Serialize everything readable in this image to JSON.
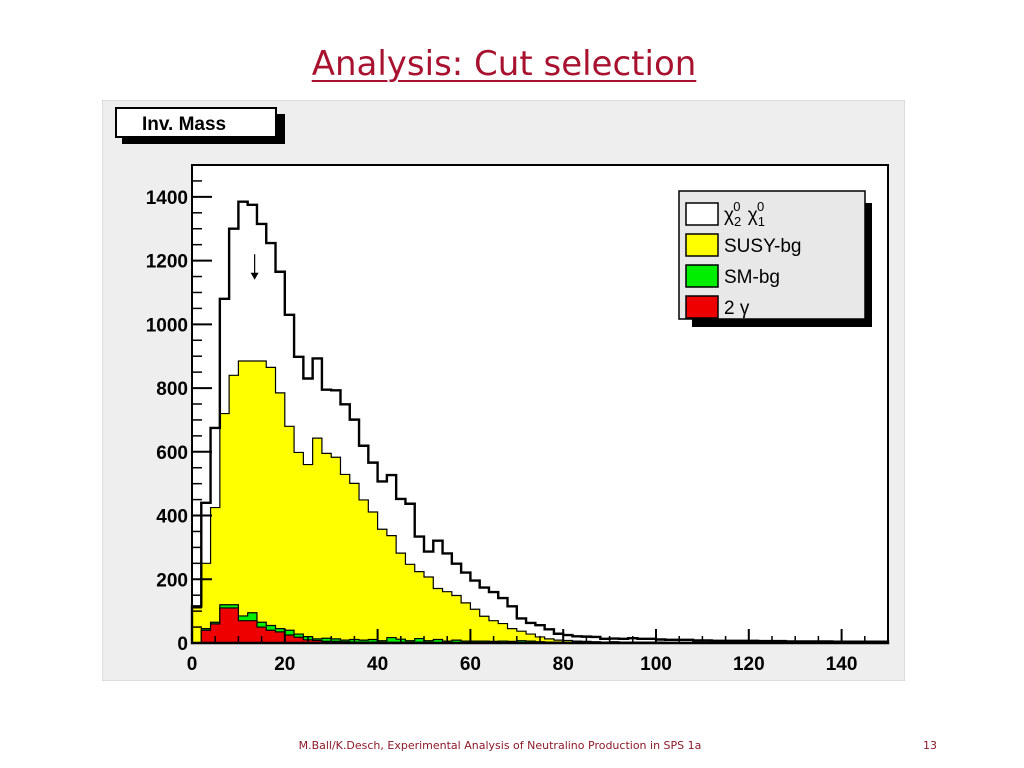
{
  "slide": {
    "title": "Analysis: Cut selection",
    "footer": "M.Ball/K.Desch, Experimental Analysis of Neutralino Production in SPS 1a",
    "page_number": "13"
  },
  "colors": {
    "title": "#a8122f",
    "pad_background": "#eeeeee",
    "frame_background": "#ffffff",
    "signal": "#ffffff",
    "susy_bg": "#ffff00",
    "sm_bg": "#00ee00",
    "two_gamma": "#ee0000",
    "footer": "#8c1a2a"
  },
  "chart_data": {
    "type": "area",
    "stacked": true,
    "title": "Inv. Mass",
    "xlabel": "",
    "ylabel": "",
    "xlim": [
      0,
      150
    ],
    "ylim": [
      0,
      1500
    ],
    "x_ticks": [
      0,
      20,
      40,
      60,
      80,
      100,
      120,
      140
    ],
    "y_ticks": [
      0,
      200,
      400,
      600,
      800,
      1000,
      1200,
      1400
    ],
    "bin_width": 2,
    "grid": false,
    "legend_position": "top-right",
    "legend": [
      {
        "label_main": "χ",
        "sub1": "2",
        "sup1": "0",
        "sub2": "1",
        "sup2": "0",
        "label": "χ₂⁰ χ₁⁰",
        "color": "#ffffff"
      },
      {
        "label": "SUSY-bg",
        "color": "#ffff00"
      },
      {
        "label": "SM-bg",
        "color": "#00ee00"
      },
      {
        "label": "2 γ",
        "color": "#ee0000"
      }
    ],
    "annotation": {
      "type": "arrow",
      "x": 13.5,
      "y_from": 1220,
      "y_to": 1140
    },
    "series": [
      {
        "name": "2 γ",
        "values": [
          0,
          40,
          60,
          110,
          110,
          70,
          70,
          50,
          40,
          35,
          25,
          18,
          10,
          8,
          5,
          5,
          4,
          3,
          3,
          3,
          2,
          2,
          2,
          2,
          2,
          2,
          1,
          1,
          1,
          1,
          1,
          1,
          1,
          1,
          1,
          1,
          1,
          0,
          0,
          0,
          0,
          0,
          0,
          0,
          0,
          0,
          0,
          0,
          0,
          0,
          0,
          0,
          0,
          0,
          0,
          0,
          0,
          0,
          0,
          0,
          0,
          0,
          0,
          0,
          0,
          0,
          0,
          0,
          0,
          0,
          0,
          0,
          0,
          0,
          0
        ]
      },
      {
        "name": "SM-bg",
        "values": [
          0,
          5,
          5,
          10,
          10,
          15,
          25,
          15,
          15,
          10,
          15,
          10,
          10,
          5,
          10,
          8,
          5,
          8,
          6,
          8,
          5,
          15,
          10,
          5,
          12,
          5,
          10,
          5,
          8,
          5,
          5,
          5,
          4,
          5,
          4,
          6,
          5,
          4,
          3,
          3,
          3,
          3,
          3,
          2,
          2,
          3,
          2,
          2,
          2,
          2,
          2,
          1,
          1,
          1,
          1,
          1,
          1,
          1,
          1,
          1,
          1,
          1,
          1,
          1,
          1,
          1,
          1,
          1,
          1,
          1,
          1,
          1,
          1,
          1,
          1
        ]
      },
      {
        "name": "SUSY-bg",
        "values": [
          110,
          205,
          360,
          600,
          720,
          800,
          790,
          820,
          810,
          740,
          640,
          570,
          540,
          630,
          580,
          570,
          520,
          490,
          440,
          400,
          350,
          320,
          270,
          240,
          210,
          200,
          160,
          155,
          140,
          120,
          100,
          78,
          65,
          55,
          40,
          30,
          22,
          15,
          10,
          6,
          5,
          3,
          2,
          2,
          1,
          1,
          1,
          1,
          1,
          1,
          1,
          1,
          1,
          1,
          1,
          1,
          1,
          1,
          1,
          1,
          1,
          1,
          1,
          1,
          1,
          1,
          1,
          1,
          1,
          1,
          1,
          1,
          1,
          1,
          1
        ]
      },
      {
        "name": "χ₂⁰ χ₁⁰",
        "values": [
          5,
          190,
          250,
          360,
          460,
          500,
          490,
          430,
          390,
          380,
          350,
          300,
          270,
          250,
          200,
          210,
          220,
          200,
          170,
          155,
          150,
          190,
          170,
          190,
          110,
          80,
          150,
          120,
          100,
          95,
          90,
          90,
          90,
          80,
          70,
          40,
          35,
          37,
          30,
          20,
          17,
          15,
          15,
          15,
          10,
          10,
          10,
          12,
          10,
          10,
          8,
          8,
          8,
          8,
          6,
          6,
          5,
          5,
          5,
          5,
          5,
          4,
          4,
          4,
          3,
          3,
          3,
          3,
          3,
          2,
          2,
          2,
          2,
          2,
          2
        ]
      }
    ]
  }
}
